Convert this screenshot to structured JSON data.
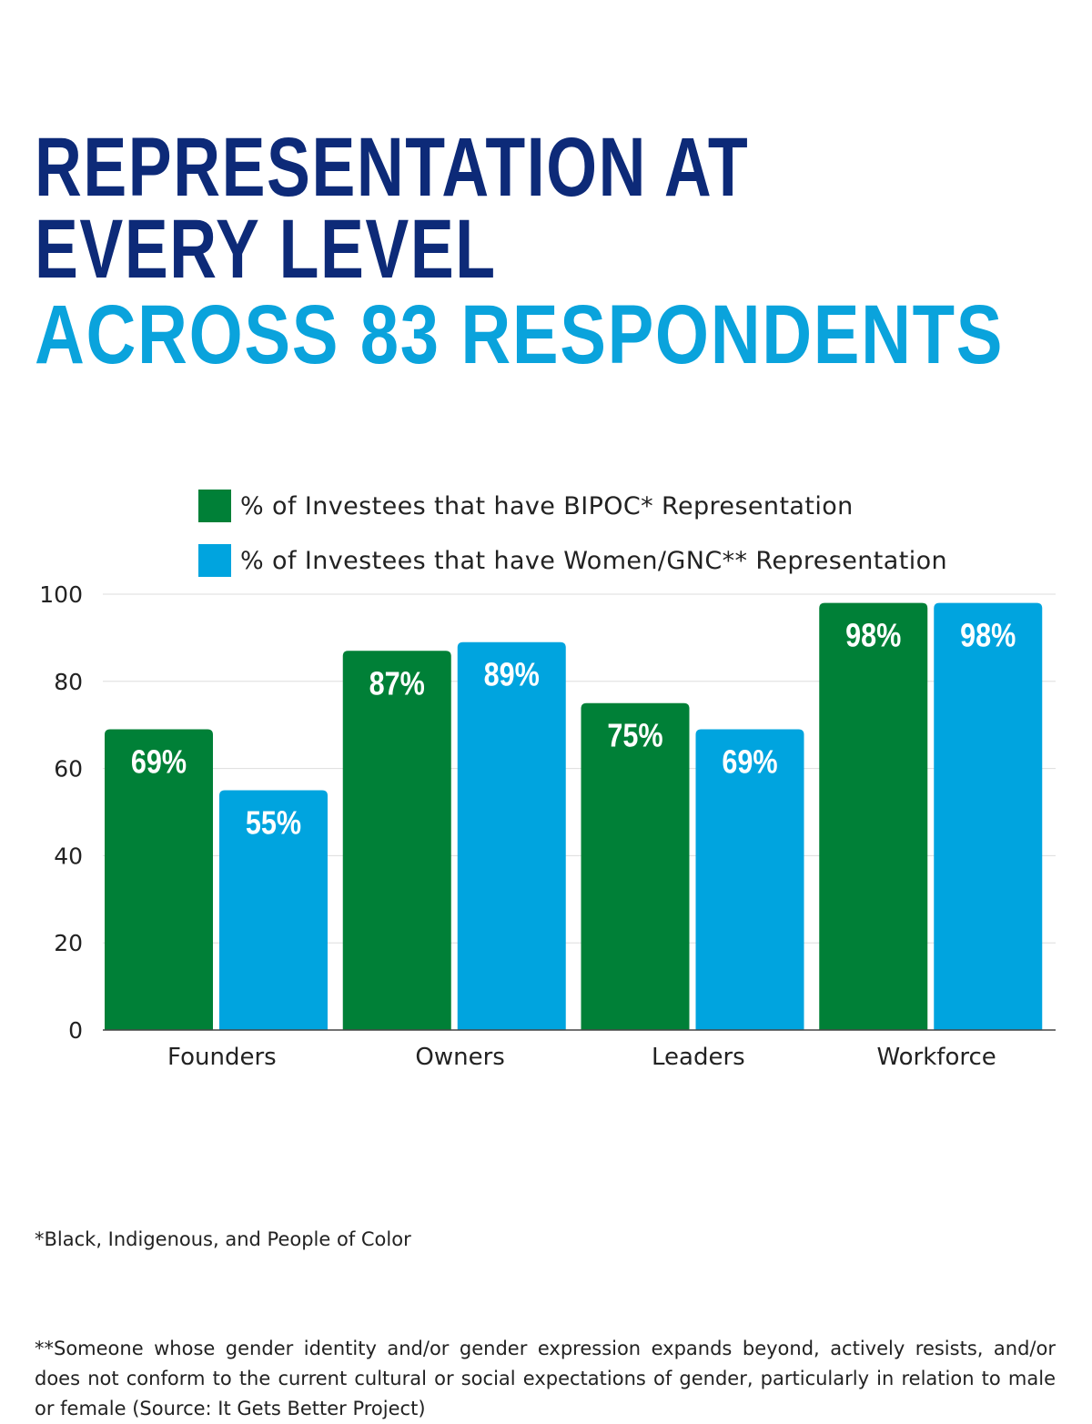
{
  "title": {
    "line1": "REPRESENTATION AT",
    "line2": "EVERY LEVEL",
    "subtitle": "ACROSS 83 RESPONDENTS"
  },
  "colors": {
    "title_dark": "#0d2a78",
    "title_accent": "#0aa3dc",
    "bipoc": "#008037",
    "women_gnc": "#00a4df",
    "grid": "#dddddd",
    "axis_text": "#222222",
    "bar_label": "#ffffff"
  },
  "chart_data": {
    "type": "bar",
    "categories": [
      "Founders",
      "Owners",
      "Leaders",
      "Workforce"
    ],
    "series": [
      {
        "name": "% of Investees that have BIPOC* Representation",
        "values": [
          69,
          87,
          75,
          98
        ],
        "labels": [
          "69%",
          "87%",
          "75%",
          "98%"
        ],
        "color": "#008037"
      },
      {
        "name": "% of Investees that have Women/GNC** Representation",
        "values": [
          55,
          89,
          69,
          98
        ],
        "labels": [
          "55%",
          "89%",
          "69%",
          "98%"
        ],
        "color": "#00a4df"
      }
    ],
    "ylim": [
      0,
      100
    ],
    "yticks": [
      0,
      20,
      40,
      60,
      80,
      100
    ],
    "grid": true,
    "legend": "top",
    "xlabel": "",
    "ylabel": ""
  },
  "footnotes": {
    "bipoc": "*Black, Indigenous, and People of Color",
    "gnc": "**Someone whose gender identity and/or gender expression expands beyond, actively resists, and/or does not conform to the current cultural or social expectations of gender, particularly in relation to male or female (Source: It Gets Better Project)"
  }
}
